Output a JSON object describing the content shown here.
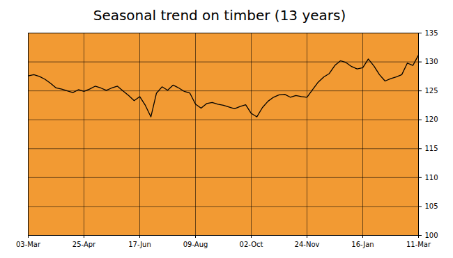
{
  "chart_data": {
    "type": "line",
    "title": "Seasonal trend on timber (13 years)",
    "categories": [
      "03-Mar",
      null,
      null,
      null,
      null,
      null,
      null,
      null,
      null,
      null,
      "25-Apr",
      null,
      null,
      null,
      null,
      null,
      null,
      null,
      null,
      null,
      "17-Jun",
      null,
      null,
      null,
      null,
      null,
      null,
      null,
      null,
      null,
      "09-Aug",
      null,
      null,
      null,
      null,
      null,
      null,
      null,
      null,
      null,
      "02-Oct",
      null,
      null,
      null,
      null,
      null,
      null,
      null,
      null,
      null,
      "24-Nov",
      null,
      null,
      null,
      null,
      null,
      null,
      null,
      null,
      null,
      "16-Jan",
      null,
      null,
      null,
      null,
      null,
      null,
      null,
      null,
      null,
      "11-Mar"
    ],
    "values": [
      127.6,
      127.8,
      127.5,
      127.0,
      126.3,
      125.5,
      125.3,
      125.0,
      124.7,
      125.2,
      124.9,
      125.3,
      125.8,
      125.5,
      125.1,
      125.5,
      125.8,
      125.0,
      124.2,
      123.3,
      124.0,
      122.5,
      120.5,
      124.6,
      125.7,
      125.1,
      126.0,
      125.5,
      124.9,
      124.6,
      122.7,
      122.0,
      122.8,
      123.0,
      122.7,
      122.5,
      122.2,
      121.9,
      122.3,
      122.6,
      121.1,
      120.5,
      122.1,
      123.2,
      123.9,
      124.3,
      124.4,
      123.9,
      124.2,
      124.0,
      123.9,
      125.2,
      126.5,
      127.4,
      128.0,
      129.4,
      130.2,
      129.9,
      129.2,
      128.8,
      129.0,
      130.5,
      129.3,
      127.8,
      126.7,
      127.1,
      127.4,
      127.8,
      129.8,
      129.4,
      131.2
    ],
    "color": "#000000",
    "ylim": [
      100,
      135
    ],
    "yticks": [
      100,
      105,
      110,
      115,
      120,
      125,
      130,
      135
    ],
    "grid": true
  }
}
